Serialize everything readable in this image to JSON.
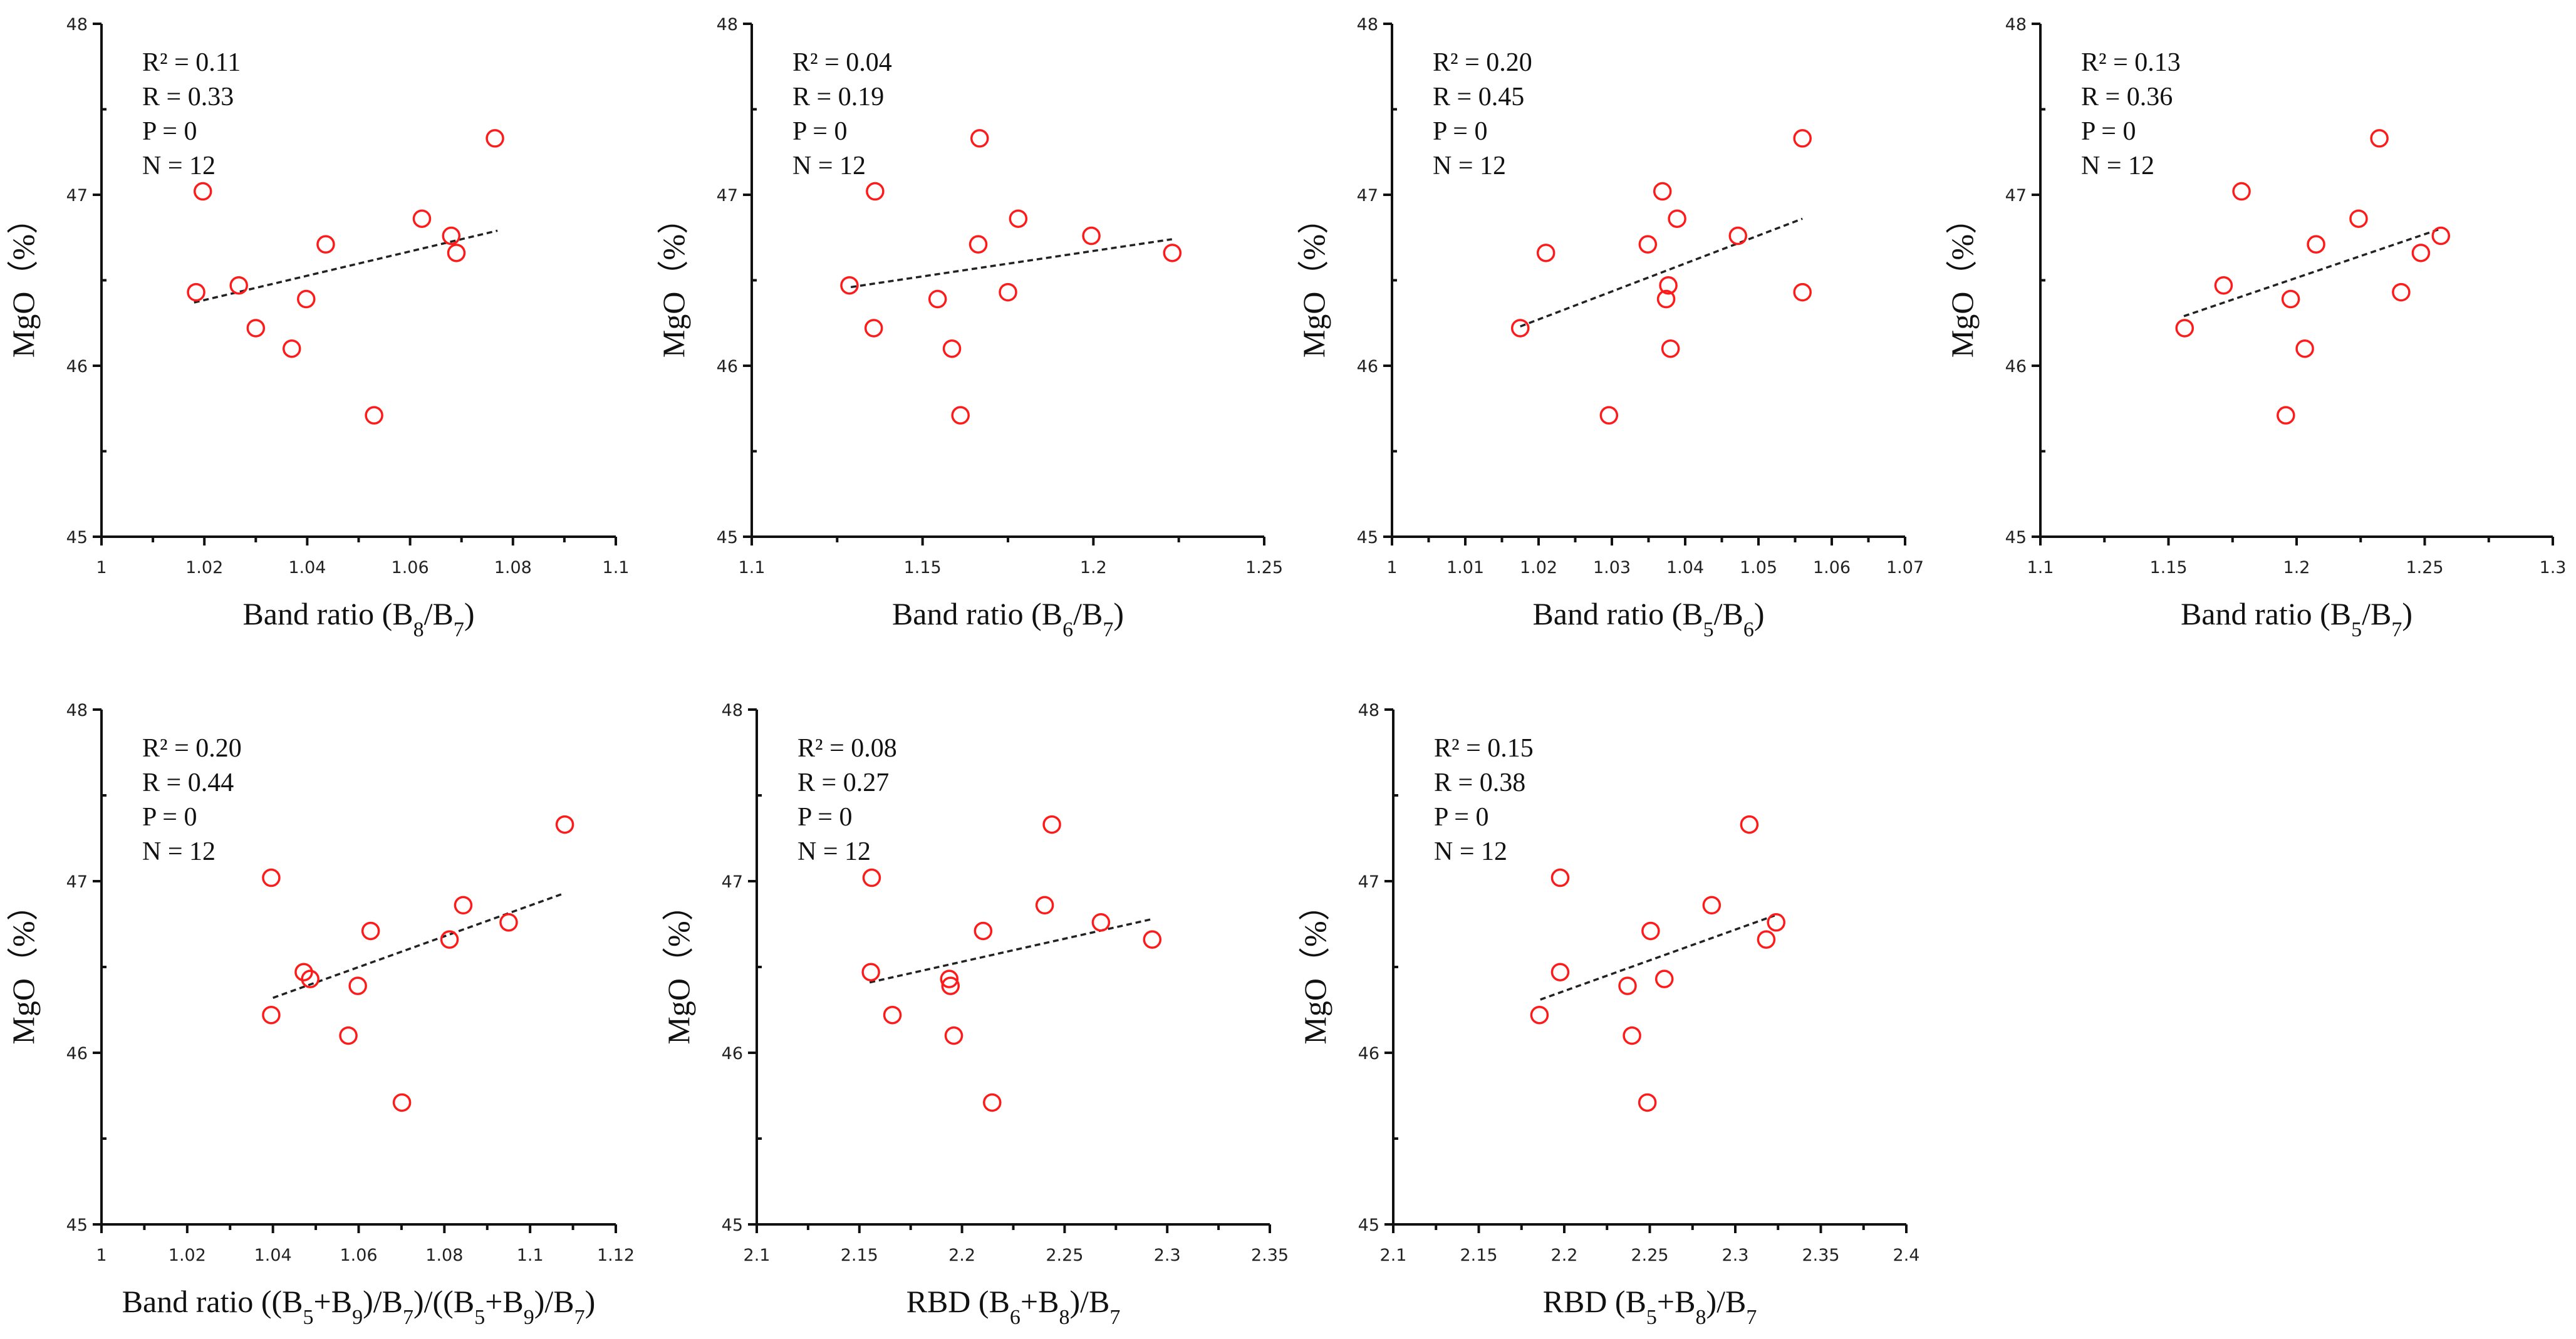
{
  "colors": {
    "marker": "#ff1a1a",
    "axis": "#111111",
    "trend": "#222222"
  },
  "chart_data": [
    {
      "type": "scatter",
      "title": "",
      "xlabel": [
        {
          "t": "Band ratio (B"
        },
        {
          "t": "8",
          "sub": true
        },
        {
          "t": "/B"
        },
        {
          "t": "7",
          "sub": true
        },
        {
          "t": ")"
        }
      ],
      "ylabel": "MgO（%）",
      "xlim": [
        1,
        1.1
      ],
      "xticks": [
        "1",
        "1.02",
        "1.04",
        "1.06",
        "1.08",
        "1.1"
      ],
      "ylim": [
        45,
        48
      ],
      "yticks": [
        "45",
        "46",
        "47",
        "48"
      ],
      "stats": {
        "r2": "R² = 0.11",
        "r": "R = 0.33",
        "p": "P = 0",
        "n": "N = 12"
      },
      "x": [
        1.0765,
        1.0197,
        1.0623,
        1.068,
        1.0436,
        1.069,
        1.0267,
        1.0184,
        1.0398,
        1.03,
        1.037,
        1.053
      ],
      "y": [
        47.33,
        47.02,
        46.86,
        46.76,
        46.71,
        46.66,
        46.47,
        46.43,
        46.39,
        46.22,
        46.1,
        45.71
      ],
      "trendline": [
        [
          1.018,
          46.37
        ],
        [
          1.077,
          46.79
        ]
      ]
    },
    {
      "type": "scatter",
      "title": "",
      "xlabel": [
        {
          "t": "Band ratio (B"
        },
        {
          "t": "6",
          "sub": true
        },
        {
          "t": "/B"
        },
        {
          "t": "7",
          "sub": true
        },
        {
          "t": ")"
        }
      ],
      "ylabel": "MgO（%）",
      "xlim": [
        1.1,
        1.25
      ],
      "xticks": [
        "1.1",
        "1.15",
        "1.2",
        "1.25"
      ],
      "ylim": [
        45,
        48
      ],
      "yticks": [
        "45",
        "46",
        "47",
        "48"
      ],
      "stats": {
        "r2": "R² = 0.04",
        "r": "R = 0.19",
        "p": "P = 0",
        "n": "N = 12"
      },
      "x": [
        1.1667,
        1.1361,
        1.178,
        1.1994,
        1.1663,
        1.2231,
        1.1286,
        1.175,
        1.1544,
        1.1357,
        1.1586,
        1.1611
      ],
      "y": [
        47.33,
        47.02,
        46.86,
        46.76,
        46.71,
        46.66,
        46.47,
        46.43,
        46.39,
        46.22,
        46.1,
        45.71
      ],
      "trendline": [
        [
          1.129,
          46.46
        ],
        [
          1.223,
          46.74
        ]
      ]
    },
    {
      "type": "scatter",
      "title": "",
      "xlabel": [
        {
          "t": "Band ratio (B"
        },
        {
          "t": "5",
          "sub": true
        },
        {
          "t": "/B"
        },
        {
          "t": "6",
          "sub": true
        },
        {
          "t": ")"
        }
      ],
      "ylabel": "MgO（%）",
      "xlim": [
        1,
        1.07
      ],
      "xticks": [
        "1",
        "1.01",
        "1.02",
        "1.03",
        "1.04",
        "1.05",
        "1.06",
        "1.07"
      ],
      "ylim": [
        45,
        48
      ],
      "yticks": [
        "45",
        "46",
        "47",
        "48"
      ],
      "stats": {
        "r2": "R² = 0.20",
        "r": "R = 0.45",
        "p": "P = 0",
        "n": "N = 12"
      },
      "x": [
        1.056,
        1.0369,
        1.0389,
        1.0472,
        1.0349,
        1.021,
        1.0377,
        1.056,
        1.0374,
        1.0175,
        1.038,
        1.0296
      ],
      "y": [
        47.33,
        47.02,
        46.86,
        46.76,
        46.71,
        46.66,
        46.47,
        46.43,
        46.39,
        46.22,
        46.1,
        45.71
      ],
      "trendline": [
        [
          1.0175,
          46.23
        ],
        [
          1.056,
          46.86
        ]
      ]
    },
    {
      "type": "scatter",
      "title": "",
      "xlabel": [
        {
          "t": "Band ratio (B"
        },
        {
          "t": "5",
          "sub": true
        },
        {
          "t": "/B"
        },
        {
          "t": "7",
          "sub": true
        },
        {
          "t": ")"
        }
      ],
      "ylabel": "MgO（%）",
      "xlim": [
        1.1,
        1.3
      ],
      "xticks": [
        "1.1",
        "1.15",
        "1.2",
        "1.25",
        "1.3"
      ],
      "ylim": [
        45,
        48
      ],
      "yticks": [
        "45",
        "46",
        "47",
        "48"
      ],
      "stats": {
        "r2": "R² = 0.13",
        "r": "R = 0.36",
        "p": "P = 0",
        "n": "N = 12"
      },
      "x": [
        1.2323,
        1.1785,
        1.2242,
        1.2563,
        1.2076,
        1.2485,
        1.1715,
        1.2408,
        1.1977,
        1.1563,
        1.2032,
        1.1958
      ],
      "y": [
        47.33,
        47.02,
        46.86,
        46.76,
        46.71,
        46.66,
        46.47,
        46.43,
        46.39,
        46.22,
        46.1,
        45.71
      ],
      "trendline": [
        [
          1.156,
          46.29
        ],
        [
          1.256,
          46.8
        ]
      ]
    },
    {
      "type": "scatter",
      "title": "",
      "xlabel": [
        {
          "t": "Band ratio ((B"
        },
        {
          "t": "5",
          "sub": true
        },
        {
          "t": "+B"
        },
        {
          "t": "9",
          "sub": true
        },
        {
          "t": ")/B"
        },
        {
          "t": "7",
          "sub": true
        },
        {
          "t": ")/((B"
        },
        {
          "t": "5",
          "sub": true
        },
        {
          "t": "+B"
        },
        {
          "t": "9",
          "sub": true
        },
        {
          "t": ")/B"
        },
        {
          "t": "7",
          "sub": true
        },
        {
          "t": ")"
        }
      ],
      "ylabel": "MgO（%）",
      "xlim": [
        1,
        1.12
      ],
      "xticks": [
        "1",
        "1.02",
        "1.04",
        "1.06",
        "1.08",
        "1.1",
        "1.12"
      ],
      "ylim": [
        45,
        48
      ],
      "yticks": [
        "45",
        "46",
        "47",
        "48"
      ],
      "stats": {
        "r2": "R² = 0.20",
        "r": "R = 0.44",
        "p": "P = 0",
        "n": "N = 12"
      },
      "x": [
        1.1081,
        1.0396,
        1.0844,
        1.095,
        1.0628,
        1.0812,
        1.0472,
        1.0487,
        1.0598,
        1.0396,
        1.0576,
        1.0701
      ],
      "y": [
        47.33,
        47.02,
        46.86,
        46.76,
        46.71,
        46.66,
        46.47,
        46.43,
        46.39,
        46.22,
        46.1,
        45.71
      ],
      "trendline": [
        [
          1.04,
          46.32
        ],
        [
          1.108,
          46.93
        ]
      ]
    },
    {
      "type": "scatter",
      "title": "",
      "xlabel": [
        {
          "t": "RBD (B"
        },
        {
          "t": "6",
          "sub": true
        },
        {
          "t": "+B"
        },
        {
          "t": "8",
          "sub": true
        },
        {
          "t": ")/B"
        },
        {
          "t": "7",
          "sub": true
        }
      ],
      "ylabel": "MgO（%）",
      "xlim": [
        2.1,
        2.35
      ],
      "xticks": [
        "2.1",
        "2.15",
        "2.2",
        "2.25",
        "2.3",
        "2.35"
      ],
      "ylim": [
        45,
        48
      ],
      "yticks": [
        "45",
        "46",
        "47",
        "48"
      ],
      "stats": {
        "r2": "R² = 0.08",
        "r": "R = 0.27",
        "p": "P = 0",
        "n": "N = 12"
      },
      "x": [
        2.2438,
        2.156,
        2.2403,
        2.2677,
        2.2103,
        2.2927,
        2.1556,
        2.1938,
        2.1944,
        2.1661,
        2.196,
        2.2147
      ],
      "y": [
        47.33,
        47.02,
        46.86,
        46.76,
        46.71,
        46.66,
        46.47,
        46.43,
        46.39,
        46.22,
        46.1,
        45.71
      ],
      "trendline": [
        [
          2.155,
          46.41
        ],
        [
          2.293,
          46.78
        ]
      ]
    },
    {
      "type": "scatter",
      "title": "",
      "xlabel": [
        {
          "t": "RBD (B"
        },
        {
          "t": "5",
          "sub": true
        },
        {
          "t": "+B"
        },
        {
          "t": "8",
          "sub": true
        },
        {
          "t": ")/B"
        },
        {
          "t": "7",
          "sub": true
        }
      ],
      "ylabel": "MgO（%）",
      "xlim": [
        2.1,
        2.4
      ],
      "xticks": [
        "2.1",
        "2.15",
        "2.2",
        "2.25",
        "2.3",
        "2.35",
        "2.4"
      ],
      "ylim": [
        45,
        48
      ],
      "yticks": [
        "45",
        "46",
        "47",
        "48"
      ],
      "stats": {
        "r2": "R² = 0.15",
        "r": "R = 0.38",
        "p": "P = 0",
        "n": "N = 12"
      },
      "x": [
        2.3082,
        2.1976,
        2.2862,
        2.3239,
        2.2505,
        2.3181,
        2.1976,
        2.2585,
        2.237,
        2.1855,
        2.2396,
        2.2486
      ],
      "y": [
        47.33,
        47.02,
        46.86,
        46.76,
        46.71,
        46.66,
        46.47,
        46.43,
        46.39,
        46.22,
        46.1,
        45.71
      ],
      "trendline": [
        [
          2.186,
          46.31
        ],
        [
          2.323,
          46.8
        ]
      ]
    }
  ]
}
